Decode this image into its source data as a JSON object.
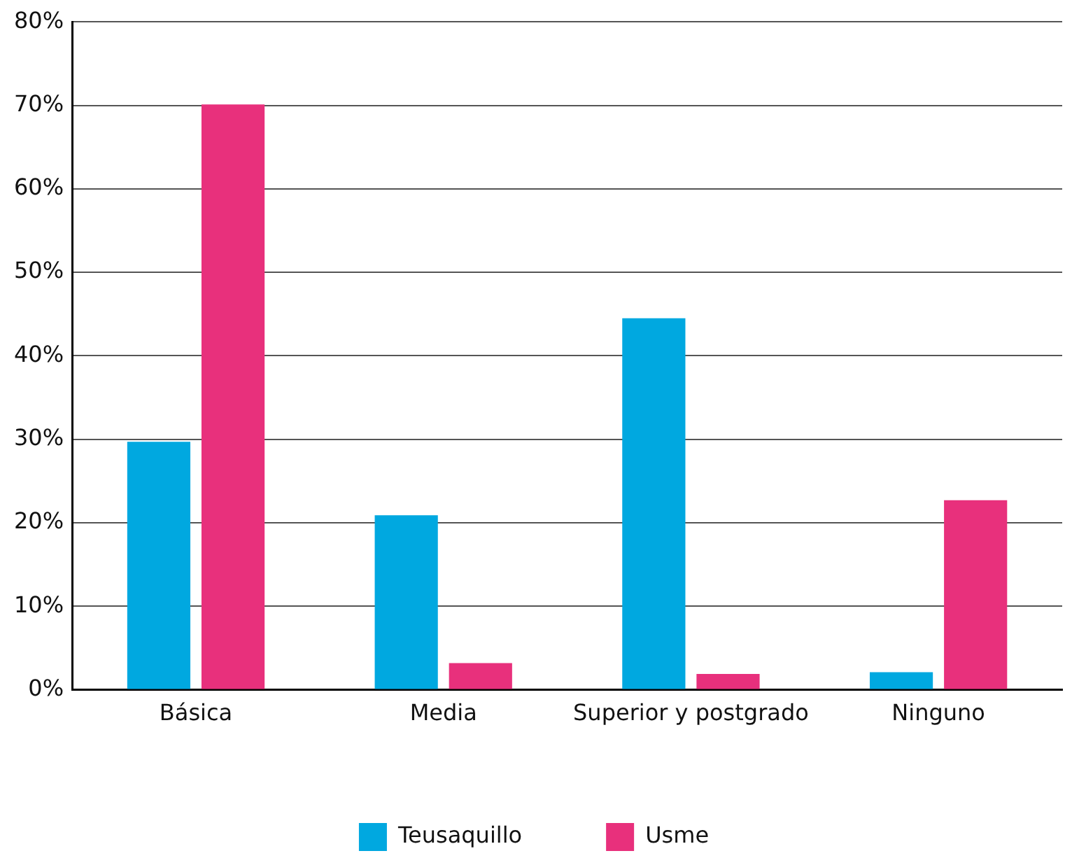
{
  "chart_data": {
    "type": "bar",
    "categories": [
      "Básica",
      "Media",
      "Superior y postgrado",
      "Ninguno"
    ],
    "series": [
      {
        "name": "Teusaquillo",
        "color": "#00a8e0",
        "values": [
          29.7,
          20.9,
          44.5,
          2.1
        ]
      },
      {
        "name": "Usme",
        "color": "#e8307c",
        "values": [
          70.1,
          3.2,
          1.9,
          22.7
        ]
      }
    ],
    "ylim": [
      0,
      80
    ],
    "yticks": [
      {
        "value": 0,
        "label": "0%"
      },
      {
        "value": 10,
        "label": "10%"
      },
      {
        "value": 20,
        "label": "20%"
      },
      {
        "value": 30,
        "label": "30%"
      },
      {
        "value": 40,
        "label": "40%"
      },
      {
        "value": 50,
        "label": "50%"
      },
      {
        "value": 60,
        "label": "60%"
      },
      {
        "value": 70,
        "label": "70%"
      },
      {
        "value": 80,
        "label": "80%"
      }
    ],
    "grid": "y",
    "legend": "bottom"
  }
}
